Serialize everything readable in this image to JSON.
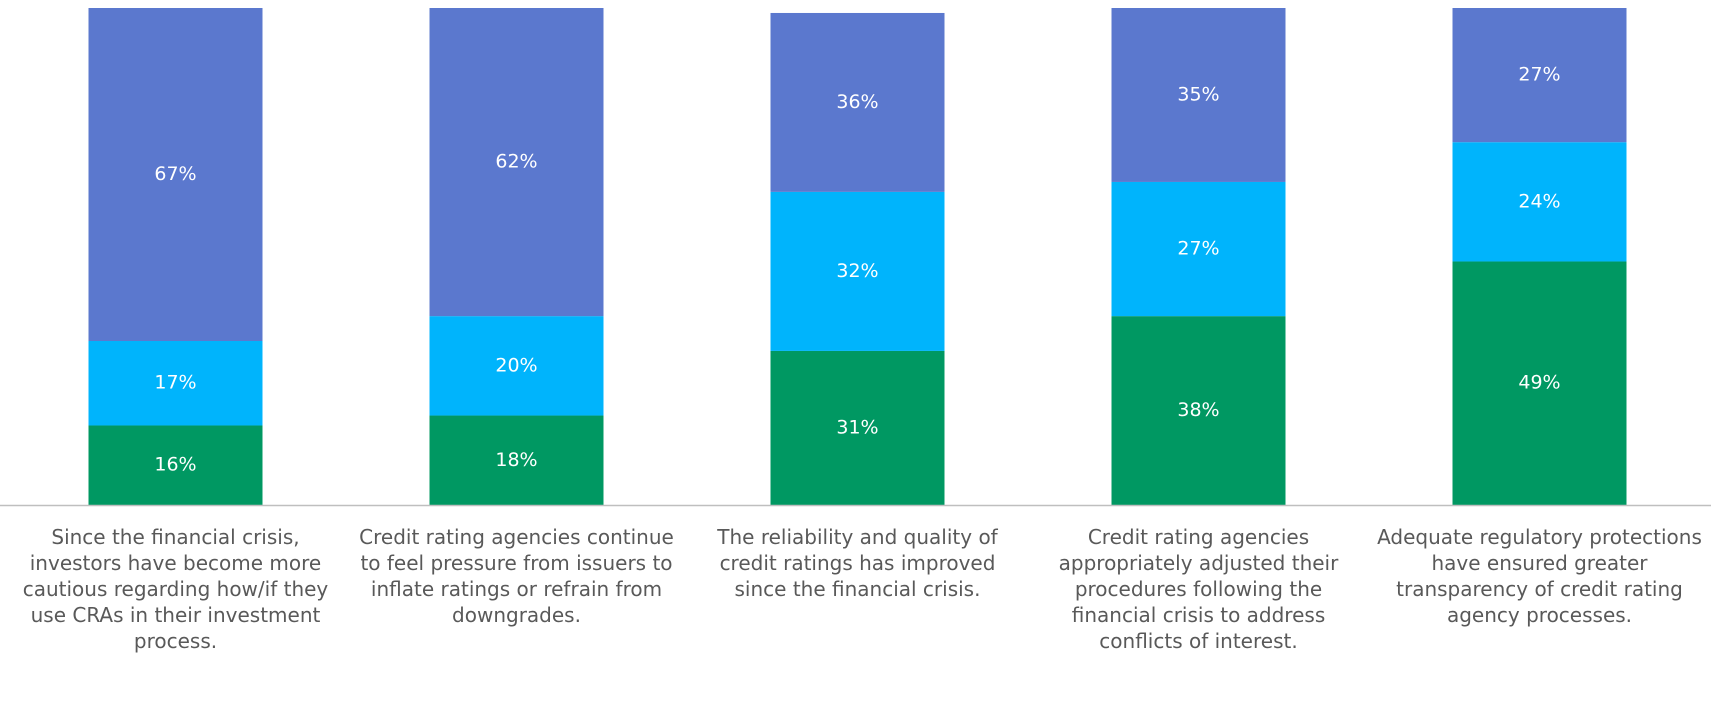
{
  "chart_data": {
    "type": "stacked_bar",
    "categories": [
      "Since the financial crisis, investors have become more cautious regarding how/if they use CRAs in their investment process.",
      "Credit rating agencies continue to feel pressure from issuers to inflate ratings or refrain from downgrades.",
      "The reliability and quality of credit ratings has improved since the financial crisis.",
      "Credit rating agencies appropriately adjusted their procedures following the financial crisis to address conflicts of interest.",
      "Adequate regulatory protections have ensured greater transparency of credit rating agency processes."
    ],
    "series": [
      {
        "color": "#009862",
        "values": [
          16,
          18,
          31,
          38,
          49
        ],
        "value_labels": [
          "16%",
          "18%",
          "31%",
          "38%",
          "49%"
        ]
      },
      {
        "color": "#00b4fc",
        "values": [
          17,
          20,
          32,
          27,
          24
        ],
        "value_labels": [
          "17%",
          "20%",
          "32%",
          "27%",
          "24%"
        ]
      },
      {
        "color": "#5b78ce",
        "values": [
          67,
          62,
          36,
          35,
          27
        ],
        "value_labels": [
          "67%",
          "62%",
          "36%",
          "35%",
          "27%"
        ]
      }
    ],
    "ylim": [
      0,
      100
    ]
  }
}
